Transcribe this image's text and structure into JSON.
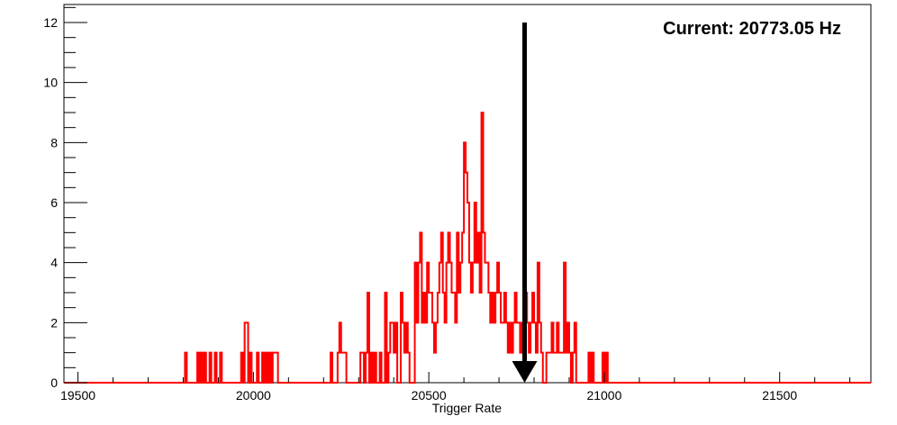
{
  "chart_data": {
    "type": "histogram",
    "xlabel": "Trigger Rate",
    "ylabel": "",
    "xlim": [
      19460,
      21760
    ],
    "ylim": [
      0,
      12.6
    ],
    "x_ticks": [
      19500,
      20000,
      20500,
      21000,
      21500
    ],
    "y_ticks": [
      0,
      2,
      4,
      6,
      8,
      10,
      12
    ],
    "grid": false,
    "bin_width": 5,
    "series": [
      {
        "color": "#ff0000",
        "bins": [
          [
            19805,
            1
          ],
          [
            19840,
            1
          ],
          [
            19850,
            1
          ],
          [
            19860,
            1
          ],
          [
            19875,
            1
          ],
          [
            19890,
            1
          ],
          [
            19905,
            1
          ],
          [
            19965,
            1
          ],
          [
            19975,
            2
          ],
          [
            19980,
            2
          ],
          [
            19990,
            1
          ],
          [
            20010,
            1
          ],
          [
            20025,
            1
          ],
          [
            20035,
            1
          ],
          [
            20045,
            1
          ],
          [
            20055,
            1
          ],
          [
            20060,
            1
          ],
          [
            20065,
            1
          ],
          [
            20220,
            1
          ],
          [
            20240,
            1
          ],
          [
            20245,
            2
          ],
          [
            20250,
            1
          ],
          [
            20255,
            1
          ],
          [
            20260,
            1
          ],
          [
            20305,
            1
          ],
          [
            20310,
            1
          ],
          [
            20320,
            1
          ],
          [
            20325,
            3
          ],
          [
            20335,
            1
          ],
          [
            20345,
            1
          ],
          [
            20360,
            1
          ],
          [
            20375,
            3
          ],
          [
            20385,
            1
          ],
          [
            20390,
            2
          ],
          [
            20395,
            2
          ],
          [
            20400,
            1
          ],
          [
            20405,
            2
          ],
          [
            20420,
            3
          ],
          [
            20425,
            2
          ],
          [
            20430,
            1
          ],
          [
            20435,
            2
          ],
          [
            20440,
            1
          ],
          [
            20460,
            4
          ],
          [
            20465,
            2
          ],
          [
            20470,
            4
          ],
          [
            20475,
            5
          ],
          [
            20480,
            2
          ],
          [
            20485,
            3
          ],
          [
            20490,
            2
          ],
          [
            20495,
            4
          ],
          [
            20500,
            3
          ],
          [
            20505,
            3
          ],
          [
            20510,
            2
          ],
          [
            20515,
            1
          ],
          [
            20520,
            2
          ],
          [
            20525,
            3
          ],
          [
            20530,
            4
          ],
          [
            20535,
            5
          ],
          [
            20540,
            3
          ],
          [
            20545,
            2
          ],
          [
            20550,
            4
          ],
          [
            20555,
            5
          ],
          [
            20560,
            4
          ],
          [
            20565,
            3
          ],
          [
            20570,
            3
          ],
          [
            20575,
            2
          ],
          [
            20580,
            5
          ],
          [
            20585,
            3
          ],
          [
            20590,
            4
          ],
          [
            20595,
            5
          ],
          [
            20600,
            8
          ],
          [
            20605,
            7
          ],
          [
            20610,
            6
          ],
          [
            20615,
            4
          ],
          [
            20620,
            3
          ],
          [
            20625,
            4
          ],
          [
            20630,
            6
          ],
          [
            20635,
            4
          ],
          [
            20640,
            5
          ],
          [
            20645,
            3
          ],
          [
            20650,
            9
          ],
          [
            20655,
            5
          ],
          [
            20660,
            4
          ],
          [
            20665,
            4
          ],
          [
            20670,
            3
          ],
          [
            20675,
            2
          ],
          [
            20680,
            3
          ],
          [
            20685,
            2
          ],
          [
            20690,
            3
          ],
          [
            20695,
            4
          ],
          [
            20700,
            3
          ],
          [
            20705,
            2
          ],
          [
            20710,
            2
          ],
          [
            20715,
            3
          ],
          [
            20720,
            2
          ],
          [
            20725,
            1
          ],
          [
            20730,
            2
          ],
          [
            20735,
            1
          ],
          [
            20740,
            2
          ],
          [
            20745,
            3
          ],
          [
            20750,
            2
          ],
          [
            20755,
            2
          ],
          [
            20760,
            1
          ],
          [
            20765,
            2
          ],
          [
            20770,
            4
          ],
          [
            20775,
            3
          ],
          [
            20780,
            2
          ],
          [
            20785,
            1
          ],
          [
            20790,
            2
          ],
          [
            20795,
            3
          ],
          [
            20800,
            2
          ],
          [
            20805,
            1
          ],
          [
            20810,
            4
          ],
          [
            20815,
            2
          ],
          [
            20820,
            1
          ],
          [
            20835,
            1
          ],
          [
            20840,
            1
          ],
          [
            20845,
            1
          ],
          [
            20850,
            2
          ],
          [
            20855,
            1
          ],
          [
            20860,
            1
          ],
          [
            20865,
            2
          ],
          [
            20870,
            1
          ],
          [
            20875,
            1
          ],
          [
            20880,
            1
          ],
          [
            20885,
            4
          ],
          [
            20890,
            1
          ],
          [
            20895,
            2
          ],
          [
            20900,
            1
          ],
          [
            20910,
            1
          ],
          [
            20915,
            2
          ],
          [
            20955,
            1
          ],
          [
            20965,
            1
          ],
          [
            20995,
            1
          ],
          [
            21005,
            1
          ]
        ]
      }
    ],
    "annotation": {
      "text": "Current: 20773.05 Hz",
      "marker_x": 20773.05,
      "marker_type": "arrow-down",
      "marker_from_y": 12,
      "marker_to_y": 0
    }
  }
}
